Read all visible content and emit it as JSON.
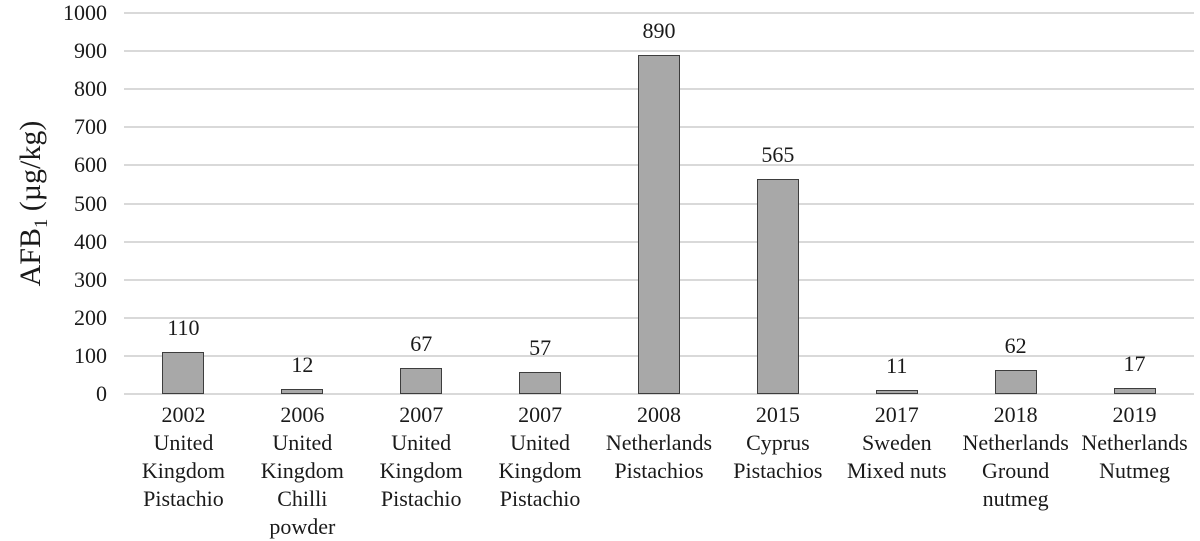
{
  "chart_data": {
    "type": "bar",
    "title": "",
    "ylabel": "AFB1 (µg/kg)",
    "ylabel_parts": {
      "prefix": "AFB",
      "sub": "1",
      "unit": " (µg/kg)"
    },
    "categories": [
      "2002\nUnited\nKingdom\nPistachio",
      "2006\nUnited\nKingdom\nChilli\npowder",
      "2007\nUnited\nKingdom\nPistachio",
      "2007\nUnited\nKingdom\nPistachio",
      "2008\nNetherlands\nPistachios",
      "2015\nCyprus\nPistachios",
      "2017\nSweden\nMixed nuts",
      "2018\nNetherlands\nGround\nnutmeg",
      "2019\nNetherlands\nNutmeg"
    ],
    "values": [
      110,
      12,
      67,
      57,
      890,
      565,
      11,
      62,
      17
    ],
    "data_labels": [
      "110",
      "12",
      "67",
      "57",
      "890",
      "565",
      "11",
      "62",
      "17"
    ],
    "ylim": [
      0,
      1000
    ],
    "yticks": [
      0,
      100,
      200,
      300,
      400,
      500,
      600,
      700,
      800,
      900,
      1000
    ],
    "grid": "horizontal",
    "legend": "none",
    "colors": {
      "bar_fill": "#a8a8a8",
      "bar_border": "#3d3d3d",
      "gridline": "#d9d9d9",
      "text": "#1a1a1a",
      "background": "#ffffff"
    }
  }
}
